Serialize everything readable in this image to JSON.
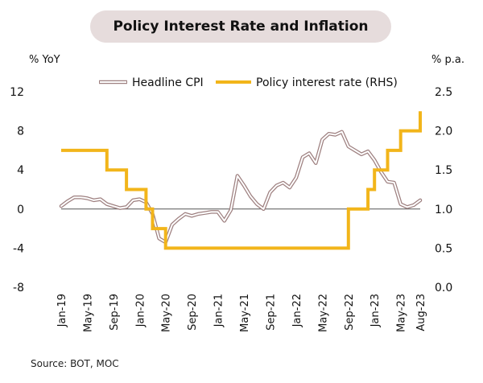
{
  "title": "Policy Interest Rate and Inflation",
  "left_unit": "% YoY",
  "right_unit": "% p.a.",
  "source": "Source: BOT, MOC",
  "colors": {
    "cpi_outline": "#9e8080",
    "policy": "#f2b51a",
    "title_bg": "#e6dcdc"
  },
  "chart_data": {
    "type": "line",
    "title": "Policy Interest Rate and Inflation",
    "x": [
      "Jan-19",
      "Feb-19",
      "Mar-19",
      "Apr-19",
      "May-19",
      "Jun-19",
      "Jul-19",
      "Aug-19",
      "Sep-19",
      "Oct-19",
      "Nov-19",
      "Dec-19",
      "Jan-20",
      "Feb-20",
      "Mar-20",
      "Apr-20",
      "May-20",
      "Jun-20",
      "Jul-20",
      "Aug-20",
      "Sep-20",
      "Oct-20",
      "Nov-20",
      "Dec-20",
      "Jan-21",
      "Feb-21",
      "Mar-21",
      "Apr-21",
      "May-21",
      "Jun-21",
      "Jul-21",
      "Aug-21",
      "Sep-21",
      "Oct-21",
      "Nov-21",
      "Dec-21",
      "Jan-22",
      "Feb-22",
      "Mar-22",
      "Apr-22",
      "May-22",
      "Jun-22",
      "Jul-22",
      "Aug-22",
      "Sep-22",
      "Oct-22",
      "Nov-22",
      "Dec-22",
      "Jan-23",
      "Feb-23",
      "Mar-23",
      "Apr-23",
      "May-23",
      "Jun-23",
      "Jul-23",
      "Aug-23"
    ],
    "x_tick_labels": [
      "Jan-19",
      "May-19",
      "Sep-19",
      "Jan-20",
      "May-20",
      "Sep-20",
      "Jan-21",
      "May-21",
      "Sep-21",
      "Jan-22",
      "May-22",
      "Sep-22",
      "Jan-23",
      "May-23",
      "Aug-23"
    ],
    "x_tick_indices": [
      0,
      4,
      8,
      12,
      16,
      20,
      24,
      28,
      32,
      36,
      40,
      44,
      48,
      52,
      55
    ],
    "ylim_left": [
      -8,
      12
    ],
    "yticks_left": [
      "12",
      "8",
      "4",
      "0",
      "-4",
      "-8"
    ],
    "ylim_right": [
      0,
      2.5
    ],
    "yticks_right": [
      "2.5",
      "2.0",
      "1.5",
      "1.0",
      "0.5",
      "0.0"
    ],
    "zero_line": true,
    "legend_position": "top",
    "series": [
      {
        "name": "Headline CPI",
        "axis": "left",
        "values": [
          0.3,
          0.8,
          1.2,
          1.2,
          1.1,
          0.9,
          1.0,
          0.5,
          0.3,
          0.1,
          0.2,
          0.9,
          1.0,
          0.7,
          -0.5,
          -3.0,
          -3.4,
          -1.6,
          -1.0,
          -0.5,
          -0.7,
          -0.5,
          -0.4,
          -0.3,
          -0.3,
          -1.2,
          -0.1,
          3.4,
          2.4,
          1.3,
          0.5,
          0.0,
          1.7,
          2.4,
          2.7,
          2.2,
          3.2,
          5.3,
          5.7,
          4.7,
          7.1,
          7.7,
          7.6,
          7.9,
          6.4,
          6.0,
          5.6,
          5.9,
          5.0,
          3.8,
          2.8,
          2.7,
          0.5,
          0.2,
          0.4,
          0.9
        ]
      },
      {
        "name": "Policy interest rate (RHS)",
        "axis": "right",
        "values": [
          1.75,
          1.75,
          1.75,
          1.75,
          1.75,
          1.75,
          1.75,
          1.5,
          1.5,
          1.5,
          1.25,
          1.25,
          1.25,
          1.0,
          0.75,
          0.75,
          0.5,
          0.5,
          0.5,
          0.5,
          0.5,
          0.5,
          0.5,
          0.5,
          0.5,
          0.5,
          0.5,
          0.5,
          0.5,
          0.5,
          0.5,
          0.5,
          0.5,
          0.5,
          0.5,
          0.5,
          0.5,
          0.5,
          0.5,
          0.5,
          0.5,
          0.5,
          0.5,
          0.5,
          1.0,
          1.0,
          1.0,
          1.25,
          1.5,
          1.5,
          1.75,
          1.75,
          2.0,
          2.0,
          2.0,
          2.25
        ]
      }
    ]
  }
}
